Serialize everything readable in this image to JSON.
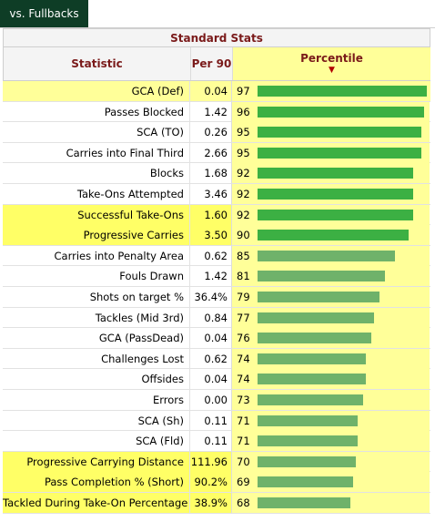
{
  "tab": {
    "label": "vs. Fullbacks"
  },
  "table": {
    "section_title": "Standard Stats",
    "col_statistic": "Statistic",
    "col_per90": "Per 90",
    "col_percentile": "Percentile",
    "sort_arrow": "▼"
  },
  "colors": {
    "tab_bg": "#0e3d26",
    "header_text": "#7a1a1a",
    "percentile_bg": "#ffff99",
    "highlight": "#ffff66",
    "bar_high": "#3cb043",
    "bar_low": "#6fb26a"
  },
  "rows": [
    {
      "stat": "GCA (Def)",
      "per90": "0.04",
      "pct": 97,
      "highlight_row": true,
      "highlight_stat": false
    },
    {
      "stat": "Passes Blocked",
      "per90": "1.42",
      "pct": 96,
      "highlight_row": false,
      "highlight_stat": false
    },
    {
      "stat": "SCA (TO)",
      "per90": "0.26",
      "pct": 95,
      "highlight_row": false,
      "highlight_stat": false
    },
    {
      "stat": "Carries into Final Third",
      "per90": "2.66",
      "pct": 95,
      "highlight_row": false,
      "highlight_stat": false
    },
    {
      "stat": "Blocks",
      "per90": "1.68",
      "pct": 92,
      "highlight_row": false,
      "highlight_stat": false
    },
    {
      "stat": "Take-Ons Attempted",
      "per90": "3.46",
      "pct": 92,
      "highlight_row": false,
      "highlight_stat": false
    },
    {
      "stat": "Successful Take-Ons",
      "per90": "1.60",
      "pct": 92,
      "highlight_row": false,
      "highlight_stat": true
    },
    {
      "stat": "Progressive Carries",
      "per90": "3.50",
      "pct": 90,
      "highlight_row": false,
      "highlight_stat": true
    },
    {
      "stat": "Carries into Penalty Area",
      "per90": "0.62",
      "pct": 85,
      "highlight_row": false,
      "highlight_stat": false
    },
    {
      "stat": "Fouls Drawn",
      "per90": "1.42",
      "pct": 81,
      "highlight_row": false,
      "highlight_stat": false
    },
    {
      "stat": "Shots on target %",
      "per90": "36.4%",
      "pct": 79,
      "highlight_row": false,
      "highlight_stat": false
    },
    {
      "stat": "Tackles (Mid 3rd)",
      "per90": "0.84",
      "pct": 77,
      "highlight_row": false,
      "highlight_stat": false
    },
    {
      "stat": "GCA (PassDead)",
      "per90": "0.04",
      "pct": 76,
      "highlight_row": false,
      "highlight_stat": false
    },
    {
      "stat": "Challenges Lost",
      "per90": "0.62",
      "pct": 74,
      "highlight_row": false,
      "highlight_stat": false
    },
    {
      "stat": "Offsides",
      "per90": "0.04",
      "pct": 74,
      "highlight_row": false,
      "highlight_stat": false
    },
    {
      "stat": "Errors",
      "per90": "0.00",
      "pct": 73,
      "highlight_row": false,
      "highlight_stat": false
    },
    {
      "stat": "SCA (Sh)",
      "per90": "0.11",
      "pct": 71,
      "highlight_row": false,
      "highlight_stat": false
    },
    {
      "stat": "SCA (Fld)",
      "per90": "0.11",
      "pct": 71,
      "highlight_row": false,
      "highlight_stat": false
    },
    {
      "stat": "Progressive Carrying Distance",
      "per90": "111.96",
      "pct": 70,
      "highlight_row": false,
      "highlight_stat": true
    },
    {
      "stat": "Pass Completion % (Short)",
      "per90": "90.2%",
      "pct": 69,
      "highlight_row": false,
      "highlight_stat": true
    },
    {
      "stat": "Tackled During Take-On Percentage",
      "per90": "38.9%",
      "pct": 68,
      "highlight_row": false,
      "highlight_stat": true
    }
  ]
}
